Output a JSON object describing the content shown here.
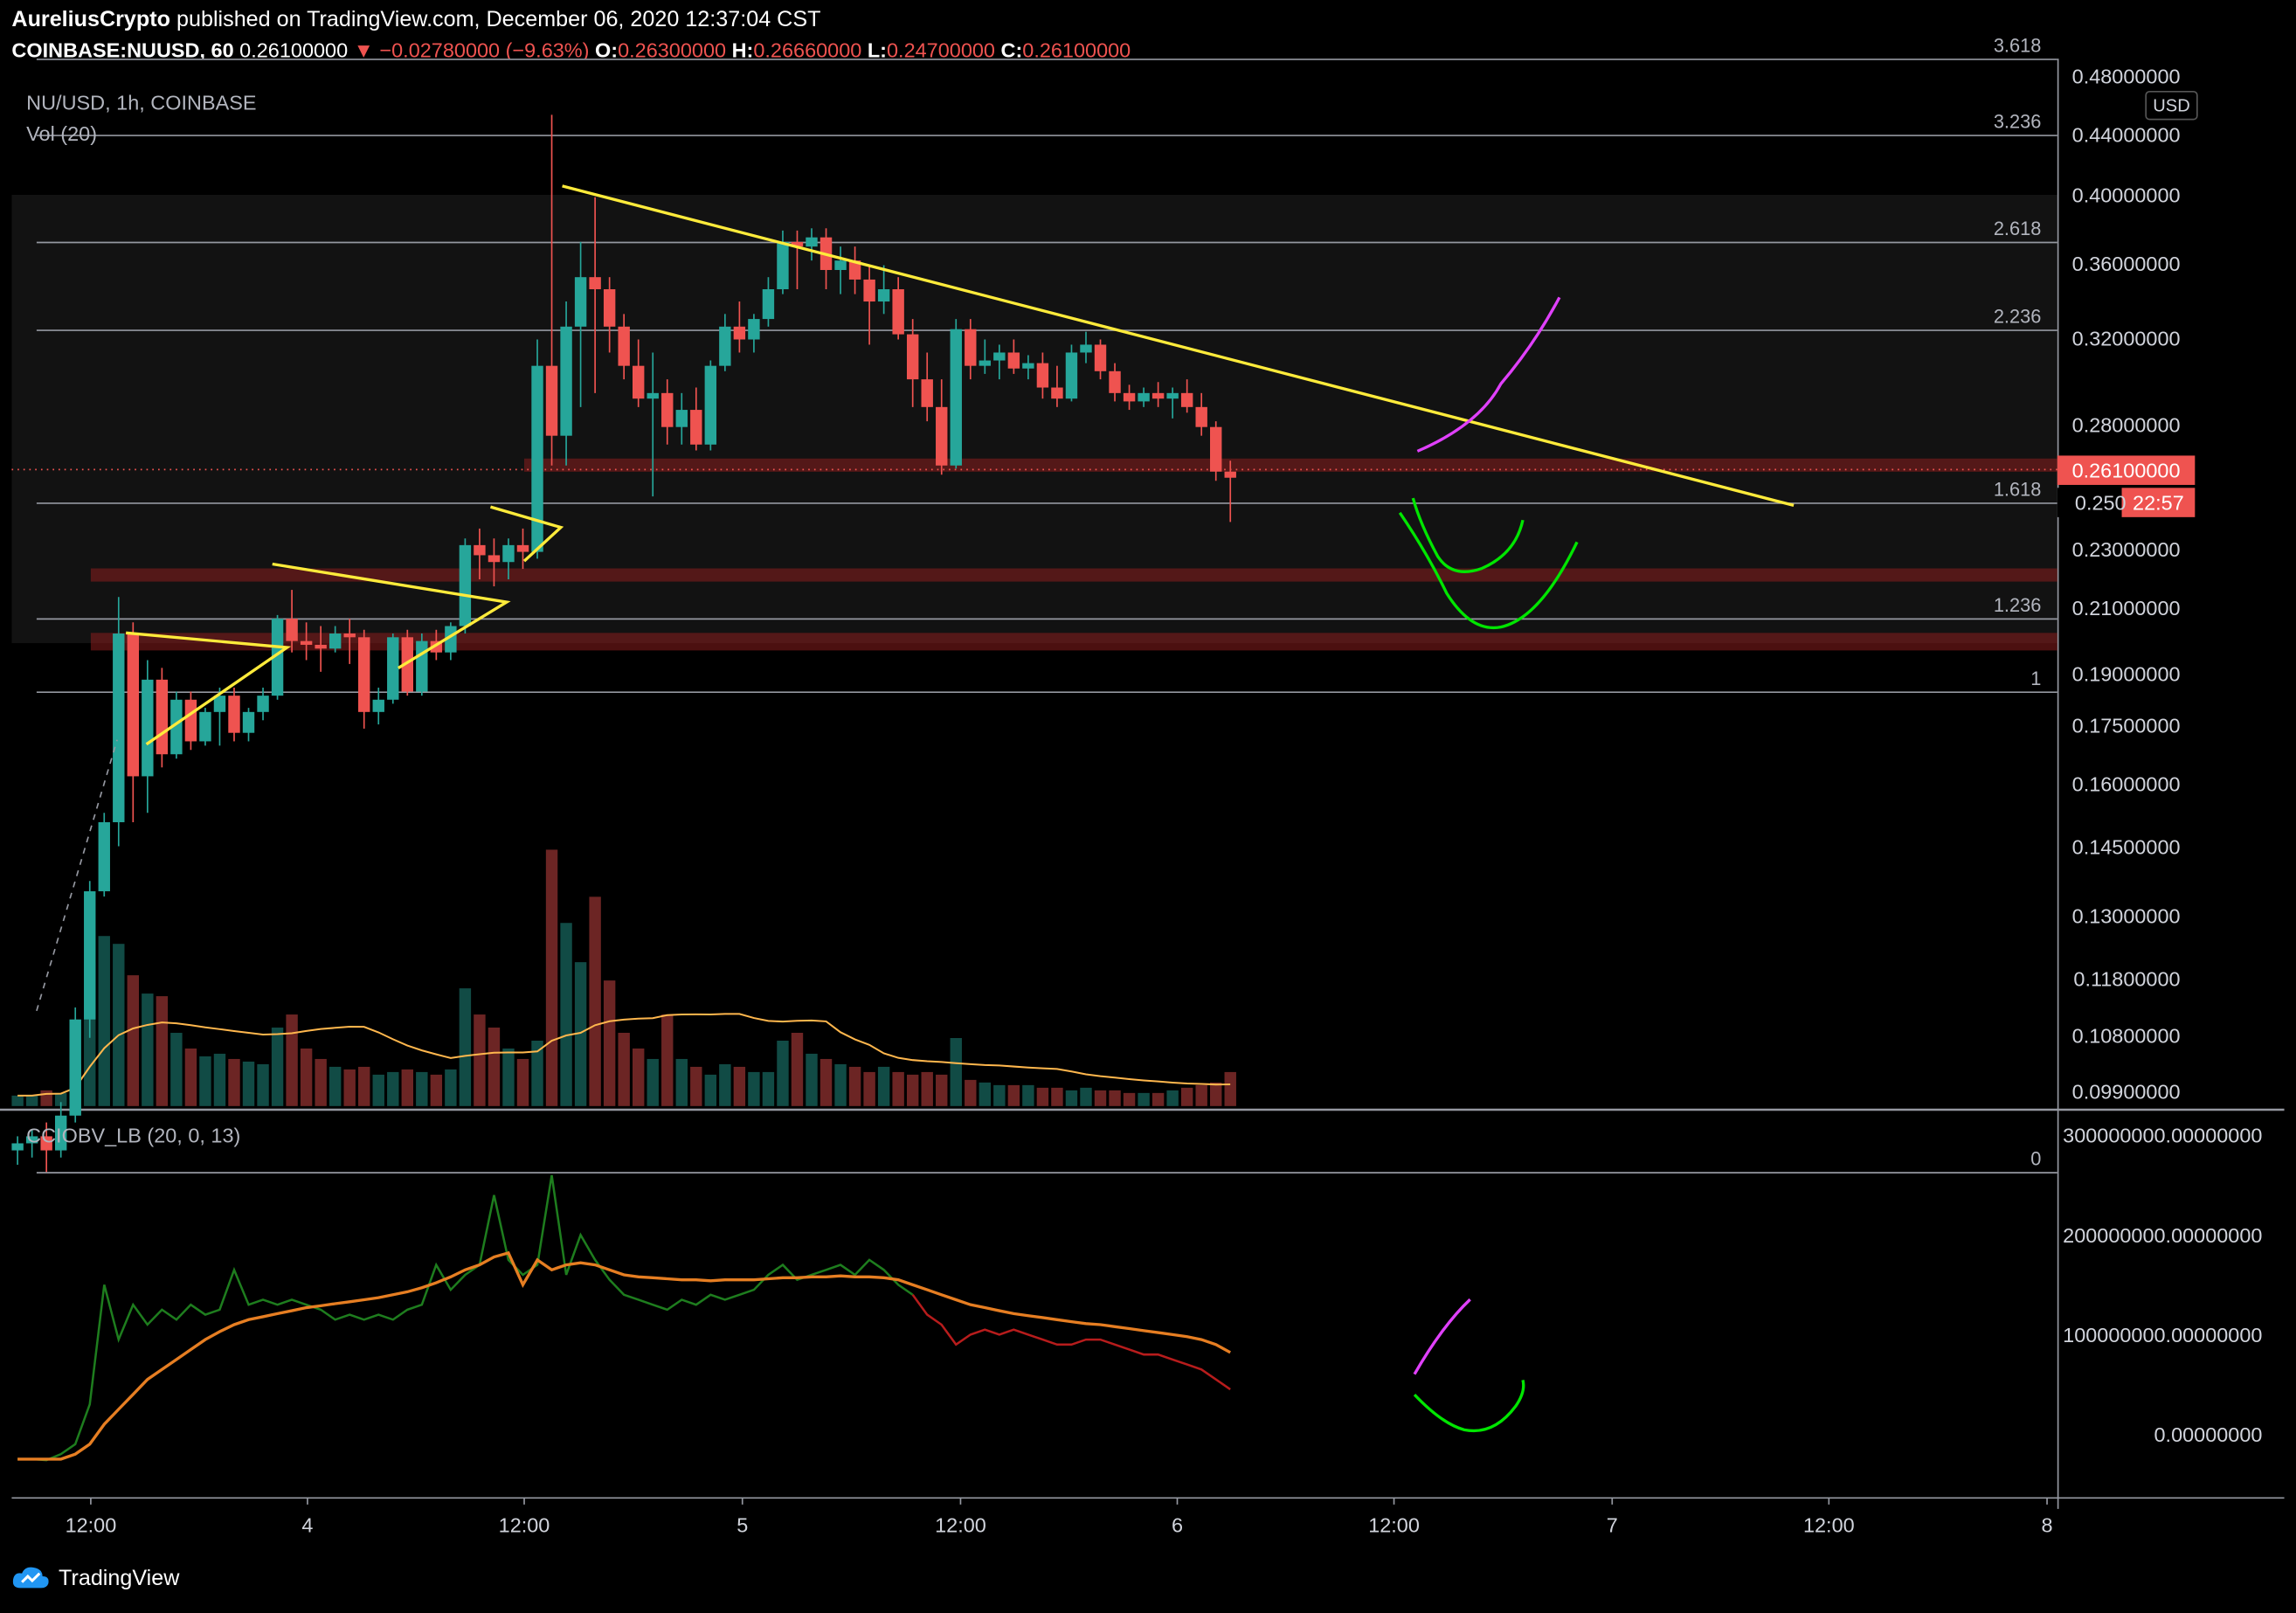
{
  "header": {
    "author": "AureliusCrypto",
    "published": "published on TradingView.com, December 06, 2020 12:37:04 CST",
    "symbol": "COINBASE:NUUSD, 60",
    "last": "0.26100000",
    "change": "−0.02780000 (−9.63%)",
    "o_label": "O:",
    "o": "0.26300000",
    "h_label": "H:",
    "h": "0.26660000",
    "l_label": "L:",
    "l": "0.24700000",
    "c_label": "C:",
    "c": "0.26100000"
  },
  "legend": {
    "main": "NU/USD, 1h, COINBASE",
    "vol": "Vol (20)",
    "indicator": "CCIOBV_LB (20, 0, 13)"
  },
  "currency": "USD",
  "price_tag": {
    "value": "0.26100000",
    "countdown": "22:57",
    "partial": "0.250"
  },
  "brand": "TradingView",
  "colors": {
    "up": "#26a69a",
    "down": "#ef5350",
    "trendline": "#ffeb3b",
    "magenta": "#e040fb",
    "green_sketch": "#00e600",
    "zone": "#8b1e1e"
  },
  "chart_data": [
    {
      "type": "candlestick",
      "title": "NU/USD, 1h, COINBASE",
      "y_scale": "log",
      "y_ticks": [
        "0.48000000",
        "0.44000000",
        "0.40000000",
        "0.36000000",
        "0.32000000",
        "0.28000000",
        "0.26100000",
        "0.23000000",
        "0.21000000",
        "0.19000000",
        "0.17500000",
        "0.16000000",
        "0.14500000",
        "0.13000000",
        "0.11800000",
        "0.10800000",
        "0.09900000"
      ],
      "x_ticks": [
        "12:00",
        "4",
        "12:00",
        "5",
        "12:00",
        "6",
        "12:00",
        "7",
        "12:00",
        "8"
      ],
      "fib_levels": [
        {
          "label": "3.618",
          "price": 0.44
        },
        {
          "label": "3.236",
          "price": 0.4
        },
        {
          "label": "2.618",
          "price": 0.35
        },
        {
          "label": "2.236",
          "price": 0.314
        },
        {
          "label": "1.618",
          "price": 0.253
        },
        {
          "label": "1.236",
          "price": 0.219
        },
        {
          "label": "1",
          "price": 0.2
        },
        {
          "label": "0",
          "price": 0.11
        }
      ],
      "candles": [
        [
          0.113,
          0.115,
          0.111,
          0.114
        ],
        [
          0.114,
          0.116,
          0.112,
          0.115
        ],
        [
          0.115,
          0.117,
          0.11,
          0.113
        ],
        [
          0.113,
          0.12,
          0.112,
          0.118
        ],
        [
          0.118,
          0.135,
          0.117,
          0.133
        ],
        [
          0.133,
          0.158,
          0.13,
          0.156
        ],
        [
          0.156,
          0.172,
          0.155,
          0.17
        ],
        [
          0.17,
          0.225,
          0.165,
          0.215
        ],
        [
          0.215,
          0.218,
          0.17,
          0.18
        ],
        [
          0.18,
          0.208,
          0.172,
          0.203
        ],
        [
          0.203,
          0.206,
          0.182,
          0.185
        ],
        [
          0.185,
          0.2,
          0.184,
          0.198
        ],
        [
          0.198,
          0.2,
          0.186,
          0.188
        ],
        [
          0.188,
          0.196,
          0.187,
          0.195
        ],
        [
          0.195,
          0.201,
          0.187,
          0.199
        ],
        [
          0.199,
          0.201,
          0.188,
          0.19
        ],
        [
          0.19,
          0.196,
          0.188,
          0.195
        ],
        [
          0.195,
          0.201,
          0.193,
          0.199
        ],
        [
          0.199,
          0.22,
          0.198,
          0.219
        ],
        [
          0.219,
          0.227,
          0.21,
          0.213
        ],
        [
          0.213,
          0.218,
          0.208,
          0.212
        ],
        [
          0.212,
          0.217,
          0.205,
          0.211
        ],
        [
          0.211,
          0.217,
          0.21,
          0.215
        ],
        [
          0.215,
          0.219,
          0.207,
          0.214
        ],
        [
          0.214,
          0.216,
          0.191,
          0.195
        ],
        [
          0.195,
          0.201,
          0.192,
          0.198
        ],
        [
          0.198,
          0.215,
          0.197,
          0.214
        ],
        [
          0.214,
          0.216,
          0.199,
          0.2
        ],
        [
          0.2,
          0.215,
          0.199,
          0.213
        ],
        [
          0.213,
          0.216,
          0.208,
          0.21
        ],
        [
          0.21,
          0.218,
          0.208,
          0.217
        ],
        [
          0.217,
          0.242,
          0.215,
          0.24
        ],
        [
          0.24,
          0.245,
          0.23,
          0.237
        ],
        [
          0.237,
          0.242,
          0.228,
          0.235
        ],
        [
          0.235,
          0.242,
          0.23,
          0.24
        ],
        [
          0.24,
          0.245,
          0.233,
          0.238
        ],
        [
          0.238,
          0.31,
          0.236,
          0.3
        ],
        [
          0.3,
          0.41,
          0.265,
          0.275
        ],
        [
          0.275,
          0.325,
          0.265,
          0.315
        ],
        [
          0.315,
          0.35,
          0.285,
          0.335
        ],
        [
          0.335,
          0.37,
          0.29,
          0.33
        ],
        [
          0.33,
          0.335,
          0.305,
          0.315
        ],
        [
          0.315,
          0.32,
          0.295,
          0.3
        ],
        [
          0.3,
          0.31,
          0.285,
          0.288
        ],
        [
          0.288,
          0.305,
          0.255,
          0.29
        ],
        [
          0.29,
          0.295,
          0.272,
          0.278
        ],
        [
          0.278,
          0.29,
          0.272,
          0.284
        ],
        [
          0.284,
          0.292,
          0.27,
          0.272
        ],
        [
          0.272,
          0.302,
          0.27,
          0.3
        ],
        [
          0.3,
          0.32,
          0.298,
          0.315
        ],
        [
          0.315,
          0.325,
          0.305,
          0.31
        ],
        [
          0.31,
          0.32,
          0.305,
          0.318
        ],
        [
          0.318,
          0.335,
          0.315,
          0.33
        ],
        [
          0.33,
          0.355,
          0.328,
          0.35
        ],
        [
          0.35,
          0.355,
          0.33,
          0.348
        ],
        [
          0.348,
          0.356,
          0.342,
          0.352
        ],
        [
          0.352,
          0.356,
          0.33,
          0.338
        ],
        [
          0.338,
          0.348,
          0.328,
          0.342
        ],
        [
          0.342,
          0.348,
          0.328,
          0.334
        ],
        [
          0.334,
          0.34,
          0.308,
          0.325
        ],
        [
          0.325,
          0.34,
          0.32,
          0.33
        ],
        [
          0.33,
          0.335,
          0.31,
          0.312
        ],
        [
          0.312,
          0.318,
          0.285,
          0.295
        ],
        [
          0.295,
          0.305,
          0.28,
          0.285
        ],
        [
          0.285,
          0.295,
          0.262,
          0.265
        ],
        [
          0.265,
          0.318,
          0.264,
          0.314
        ],
        [
          0.314,
          0.318,
          0.295,
          0.3
        ],
        [
          0.3,
          0.31,
          0.297,
          0.302
        ],
        [
          0.302,
          0.308,
          0.295,
          0.305
        ],
        [
          0.305,
          0.31,
          0.297,
          0.299
        ],
        [
          0.299,
          0.304,
          0.295,
          0.301
        ],
        [
          0.301,
          0.305,
          0.288,
          0.292
        ],
        [
          0.292,
          0.3,
          0.285,
          0.288
        ],
        [
          0.288,
          0.308,
          0.287,
          0.305
        ],
        [
          0.305,
          0.313,
          0.301,
          0.308
        ],
        [
          0.308,
          0.31,
          0.295,
          0.298
        ],
        [
          0.298,
          0.301,
          0.287,
          0.29
        ],
        [
          0.29,
          0.293,
          0.284,
          0.287
        ],
        [
          0.287,
          0.292,
          0.285,
          0.29
        ],
        [
          0.29,
          0.294,
          0.285,
          0.288
        ],
        [
          0.288,
          0.292,
          0.281,
          0.29
        ],
        [
          0.29,
          0.295,
          0.283,
          0.285
        ],
        [
          0.285,
          0.29,
          0.275,
          0.278
        ],
        [
          0.278,
          0.28,
          0.26,
          0.263
        ],
        [
          0.263,
          0.2666,
          0.247,
          0.261
        ]
      ],
      "volume_ma": 20
    },
    {
      "type": "line",
      "title": "CCIOBV_LB (20, 0, 13)",
      "y_ticks": [
        "300000000.00000000",
        "200000000.00000000",
        "100000000.00000000",
        "0.00000000"
      ],
      "ylim": [
        -40000000,
        310000000
      ]
    }
  ]
}
